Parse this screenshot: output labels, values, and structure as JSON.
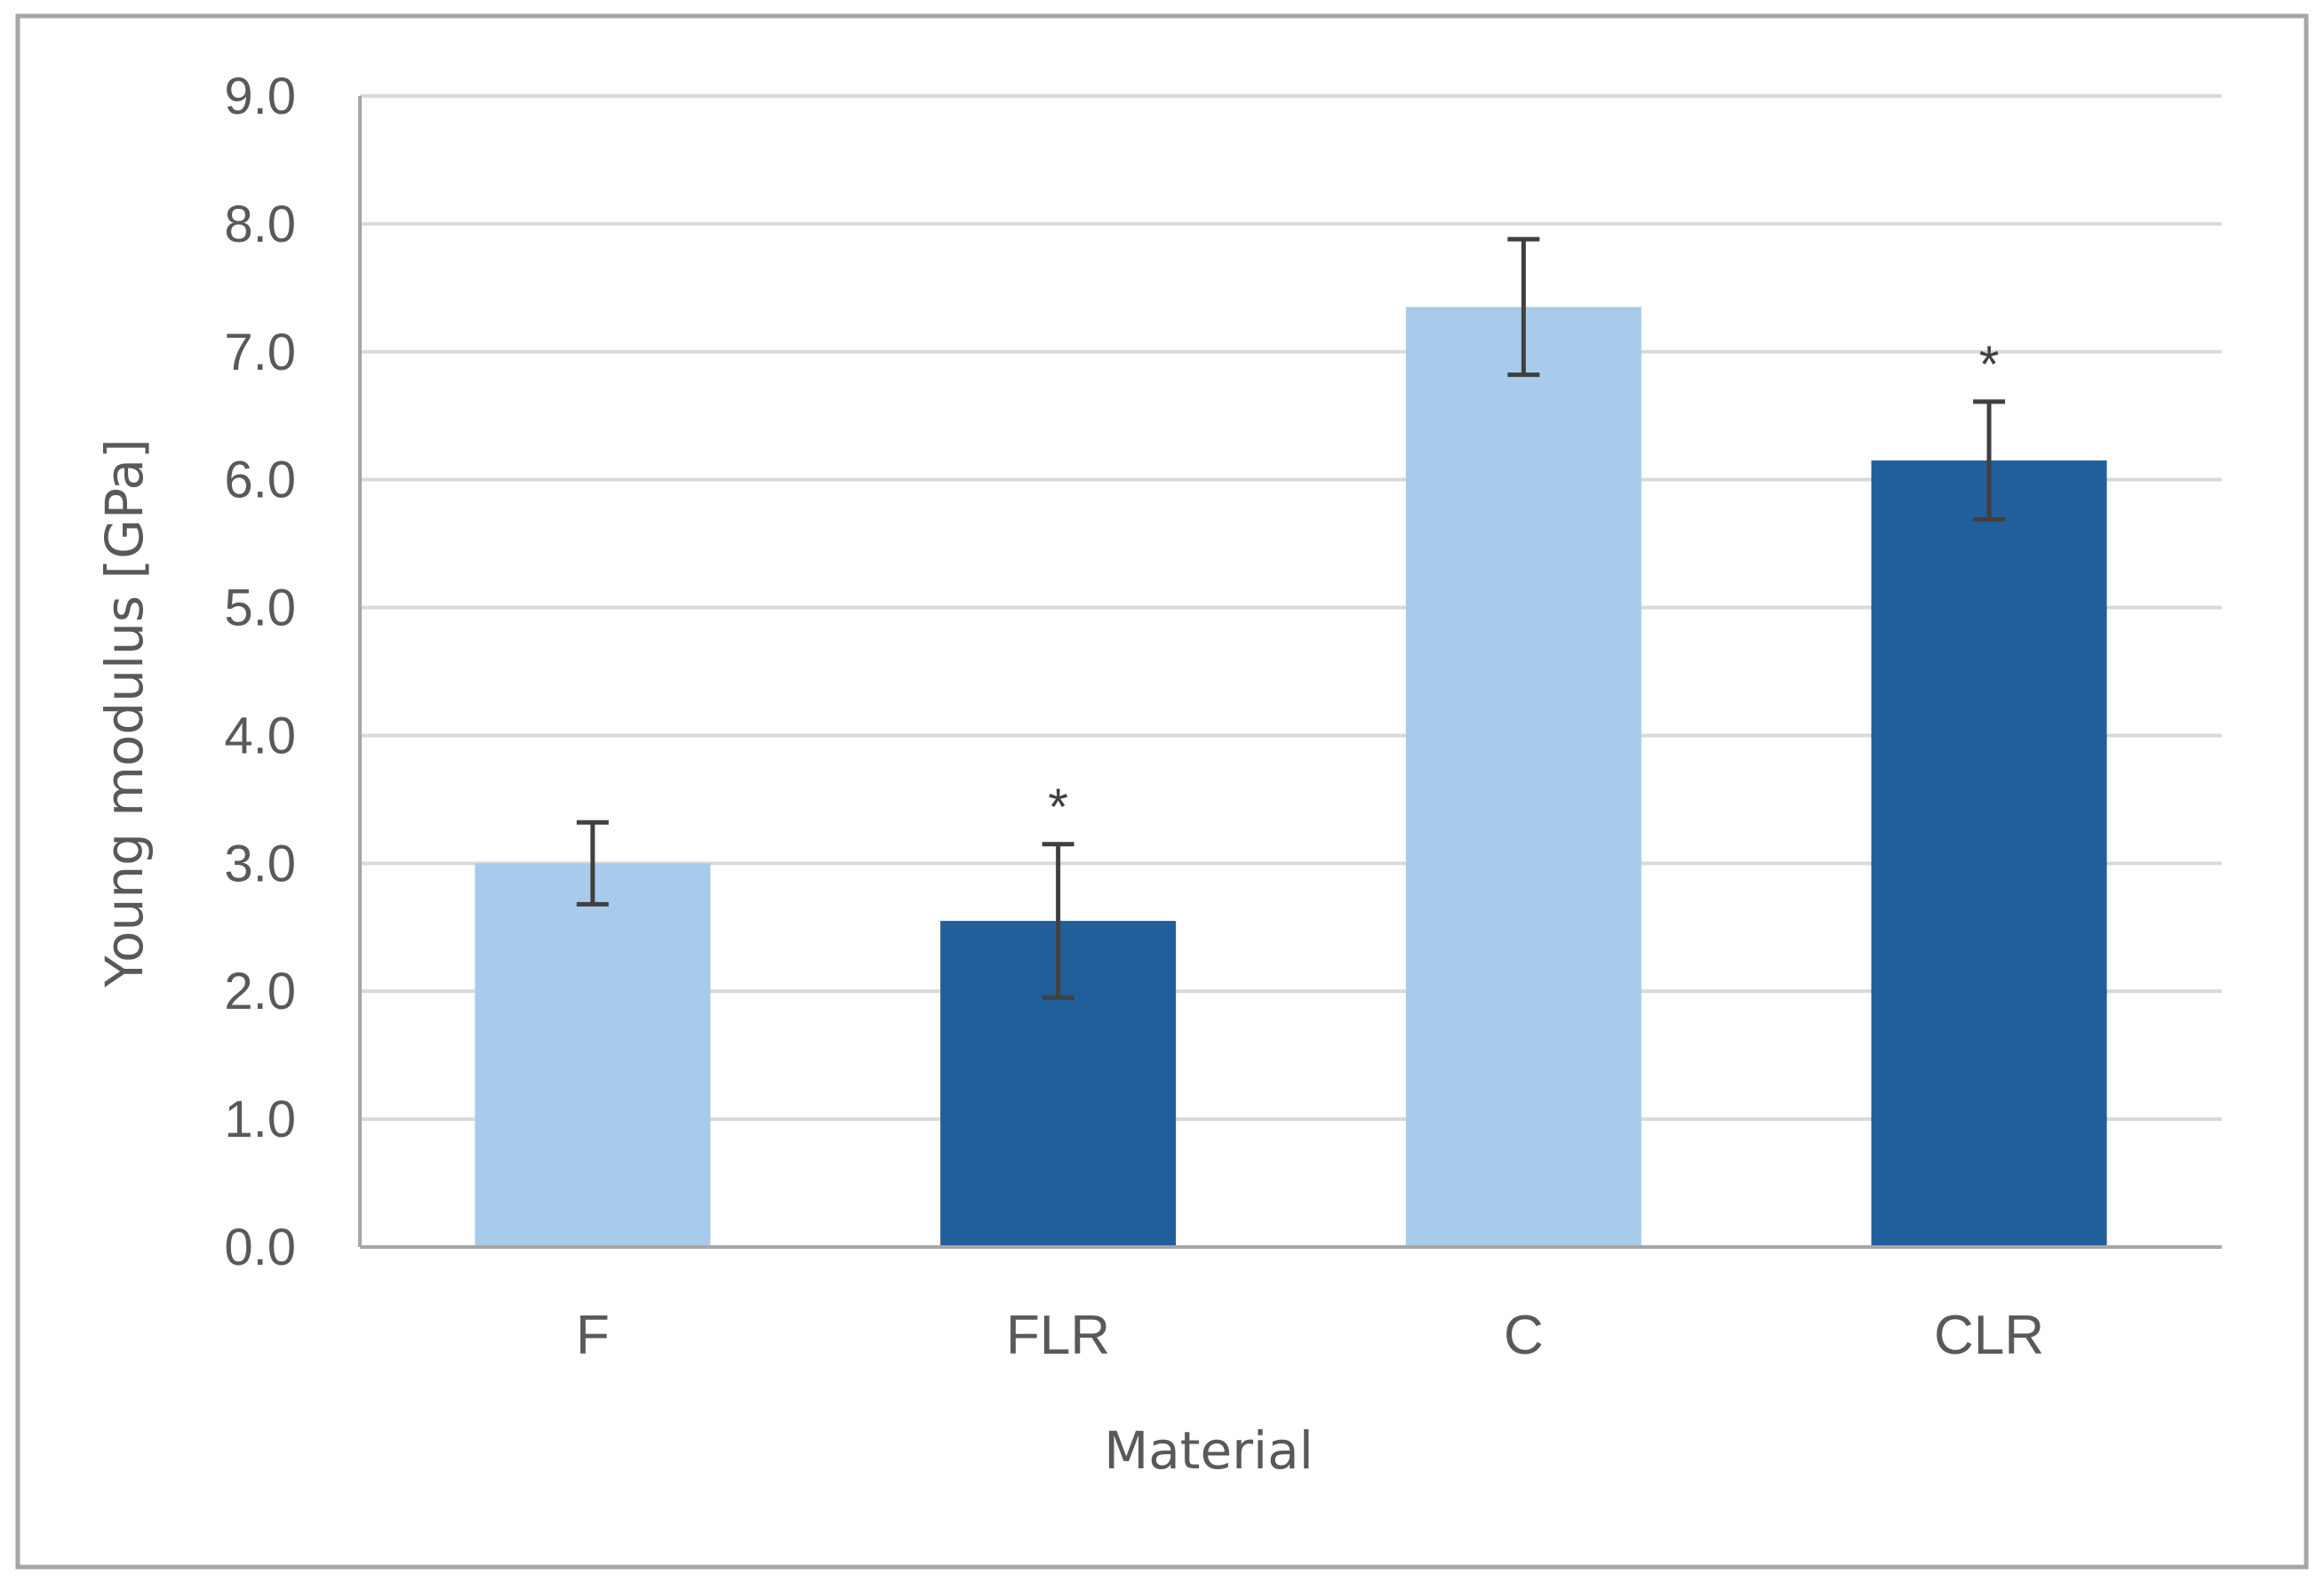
{
  "chart_data": {
    "type": "bar",
    "categories": [
      "F",
      "FLR",
      "C",
      "CLR"
    ],
    "values": [
      3.0,
      2.55,
      7.35,
      6.15
    ],
    "errors": [
      0.32,
      0.6,
      0.53,
      0.46
    ],
    "annotations": [
      "",
      "*",
      "",
      "*"
    ],
    "bar_colors": [
      "#a9cbeb",
      "#215f9a",
      "#a9cbeb",
      "#215f9a"
    ],
    "xlabel": "Material",
    "ylabel": "Young modulus [GPa]",
    "ylim": [
      0,
      9
    ],
    "y_ticks": [
      "0.0",
      "1.0",
      "2.0",
      "3.0",
      "4.0",
      "5.0",
      "6.0",
      "7.0",
      "8.0",
      "9.0"
    ],
    "y_tick_values": [
      0,
      1,
      2,
      3,
      4,
      5,
      6,
      7,
      8,
      9
    ],
    "grid": true,
    "legend": "none",
    "gridline_color": "#d9d9d9",
    "errorbar_color": "#404040"
  }
}
